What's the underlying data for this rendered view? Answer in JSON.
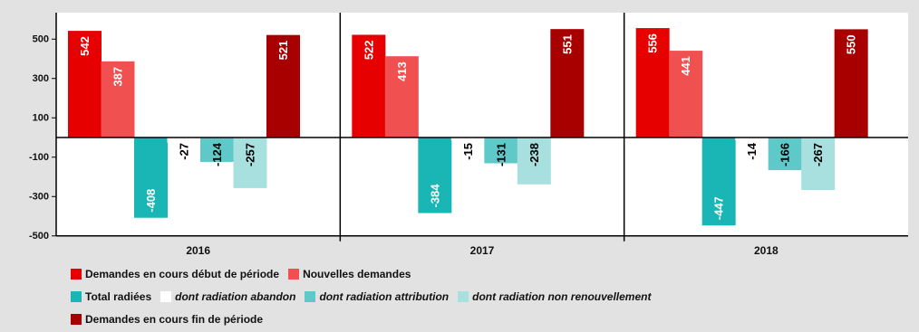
{
  "chart_data": {
    "type": "bar",
    "categories": [
      "2016",
      "2017",
      "2018"
    ],
    "ylim": [
      -500,
      650
    ],
    "yticks": [
      500,
      300,
      100,
      -100,
      -300,
      -500
    ],
    "ytick_labels": [
      "500",
      "300",
      "100",
      "-100",
      "-300",
      "-500"
    ],
    "grid": false,
    "legend_position": "bottom",
    "series": [
      {
        "name": "Demandes en cours début de période",
        "color": "#e60000",
        "values": [
          542,
          522,
          556
        ]
      },
      {
        "name": "Nouvelles demandes",
        "color": "#f05050",
        "values": [
          387,
          413,
          441
        ]
      },
      {
        "name": "Total radiées",
        "color": "#1ab5b5",
        "values": [
          -408,
          -384,
          -447
        ]
      },
      {
        "name": "dont radiation abandon",
        "color": "#ffffff",
        "italic": true,
        "values": [
          -27,
          -15,
          -14
        ]
      },
      {
        "name": "dont radiation attribution",
        "color": "#5fc9c9",
        "italic": true,
        "values": [
          -124,
          -131,
          -166
        ]
      },
      {
        "name": "dont radiation non renouvellement",
        "color": "#a8e0e0",
        "italic": true,
        "values": [
          -257,
          -238,
          -267
        ]
      },
      {
        "name": "Demandes en cours fin de période",
        "color": "#a80000",
        "values": [
          521,
          551,
          550
        ]
      }
    ]
  }
}
